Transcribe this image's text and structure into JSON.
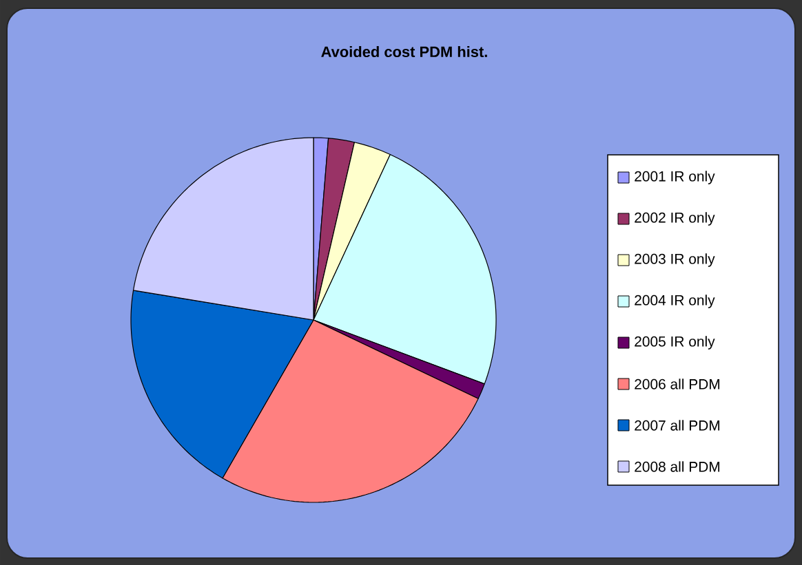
{
  "chart_data": {
    "type": "pie",
    "title": "Avoided cost PDM hist.",
    "categories": [
      "2001 IR only",
      "2002 IR only",
      "2003 IR only",
      "2004 IR only",
      "2005 IR only",
      "2006 all PDM",
      "2007 all PDM",
      "2008 all PDM"
    ],
    "values": [
      1.3,
      2.3,
      3.3,
      23.8,
      1.4,
      26.2,
      19.3,
      22.4
    ],
    "colors": [
      "#9999ff",
      "#993366",
      "#ffffcc",
      "#ccffff",
      "#660066",
      "#ff8080",
      "#0066cc",
      "#ccccff"
    ],
    "legend": "right"
  }
}
